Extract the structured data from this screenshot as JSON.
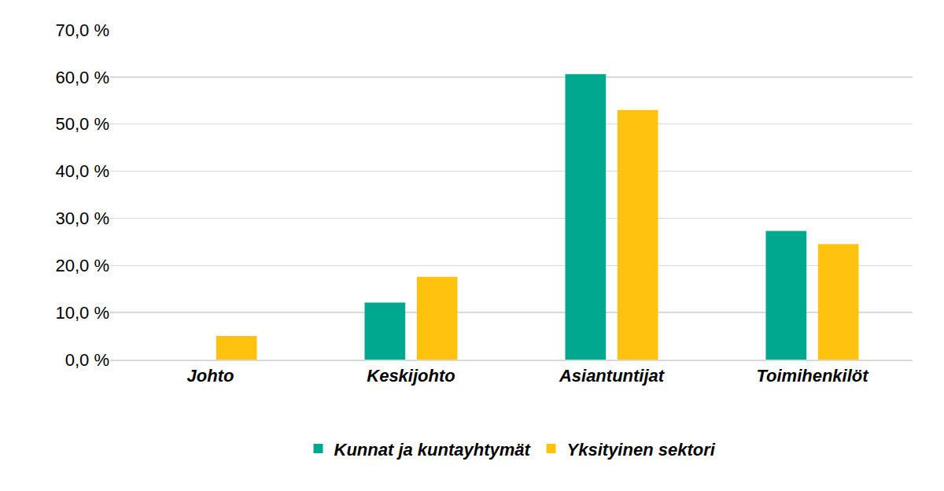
{
  "chart_data": {
    "type": "bar",
    "categories": [
      "Johto",
      "Keskijohto",
      "Asiantuntijat",
      "Toimihenkilöt"
    ],
    "series": [
      {
        "name": "Kunnat ja kuntayhtymät",
        "color": "#00a88f",
        "values": [
          0,
          12.1,
          60.6,
          27.3
        ]
      },
      {
        "name": "Yksityinen sektori",
        "color": "#ffc20e",
        "values": [
          5.0,
          17.6,
          53.0,
          24.5
        ]
      }
    ],
    "ylim": [
      0,
      70
    ],
    "yticks": [
      {
        "value": 0,
        "label": "0,0 %"
      },
      {
        "value": 10,
        "label": "10,0 %"
      },
      {
        "value": 20,
        "label": "20,0 %"
      },
      {
        "value": 30,
        "label": "30,0 %"
      },
      {
        "value": 40,
        "label": "40,0 %"
      },
      {
        "value": 50,
        "label": "50,0 %"
      },
      {
        "value": 60,
        "label": "60,0 %"
      },
      {
        "value": 70,
        "label": "70,0 %"
      }
    ],
    "grid": true,
    "legend": "bottom"
  }
}
